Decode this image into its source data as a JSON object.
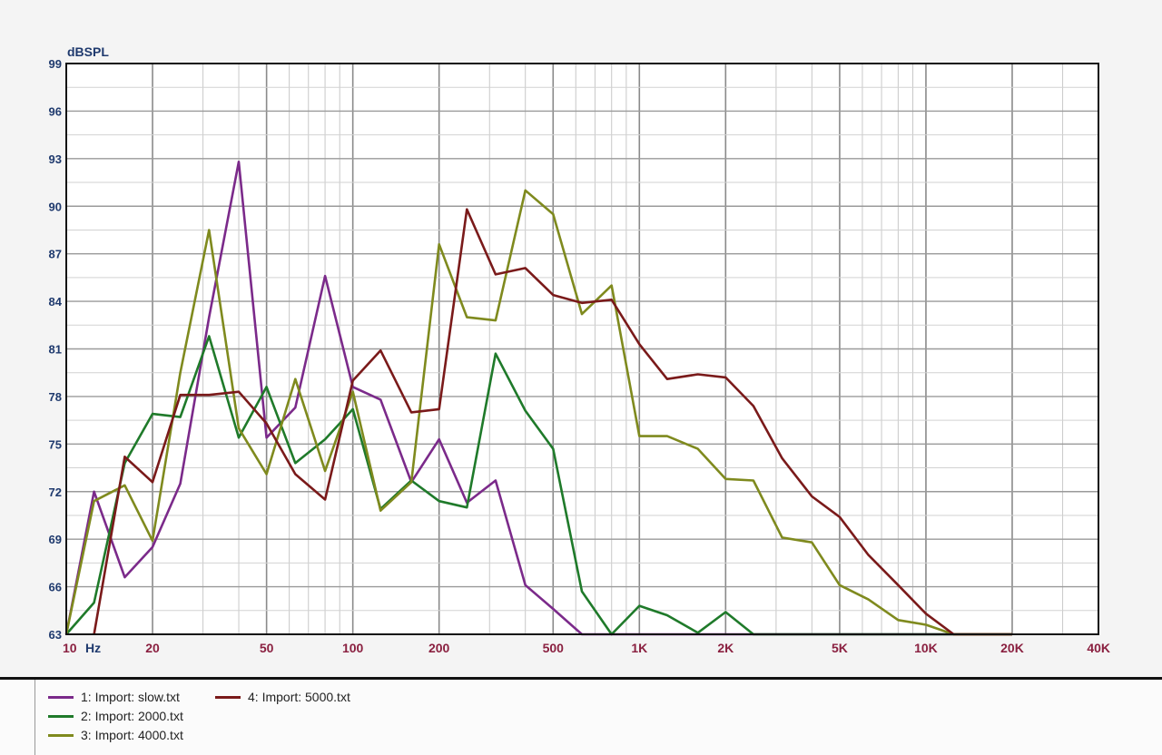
{
  "chart_data": {
    "type": "line",
    "ylabel": "dBSPL",
    "xlabel": "",
    "x_unit_label": "Hz",
    "x_scale": "log",
    "xlim": [
      10,
      40000
    ],
    "ylim": [
      63,
      99
    ],
    "grid": true,
    "y_ticks": [
      63,
      66,
      69,
      72,
      75,
      78,
      81,
      84,
      87,
      90,
      93,
      96,
      99
    ],
    "x_ticks": [
      {
        "value": 10,
        "label": "10"
      },
      {
        "value": 20,
        "label": "20"
      },
      {
        "value": 50,
        "label": "50"
      },
      {
        "value": 100,
        "label": "100"
      },
      {
        "value": 200,
        "label": "200"
      },
      {
        "value": 500,
        "label": "500"
      },
      {
        "value": 1000,
        "label": "1K"
      },
      {
        "value": 2000,
        "label": "2K"
      },
      {
        "value": 5000,
        "label": "5K"
      },
      {
        "value": 10000,
        "label": "10K"
      },
      {
        "value": 20000,
        "label": "20K"
      },
      {
        "value": 40000,
        "label": "40K"
      }
    ],
    "legend_position": "bottom",
    "series": [
      {
        "name": "1: Import: slow.txt",
        "color": "#7b2a8a",
        "points": [
          [
            10,
            63.0
          ],
          [
            12.5,
            72.0
          ],
          [
            16,
            66.6
          ],
          [
            20,
            68.5
          ],
          [
            25,
            72.5
          ],
          [
            31.5,
            83.0
          ],
          [
            40,
            92.8
          ],
          [
            50,
            75.4
          ],
          [
            63,
            77.3
          ],
          [
            80,
            85.6
          ],
          [
            100,
            78.6
          ],
          [
            125,
            77.8
          ],
          [
            160,
            72.6
          ],
          [
            200,
            75.3
          ],
          [
            250,
            71.3
          ],
          [
            315,
            72.7
          ],
          [
            400,
            66.1
          ],
          [
            500,
            64.6
          ],
          [
            630,
            63.0
          ],
          [
            800,
            63.0
          ],
          [
            1000,
            63.0
          ],
          [
            1250,
            63.0
          ],
          [
            1600,
            63.0
          ],
          [
            2000,
            63.0
          ],
          [
            2500,
            63.0
          ],
          [
            3150,
            63.0
          ],
          [
            4000,
            63.0
          ],
          [
            5000,
            63.0
          ],
          [
            6300,
            63.0
          ],
          [
            8000,
            63.0
          ],
          [
            10000,
            63.0
          ],
          [
            12500,
            63.0
          ],
          [
            16000,
            63.0
          ],
          [
            20000,
            63.0
          ]
        ]
      },
      {
        "name": "2: Import: 2000.txt",
        "color": "#1f7a2a",
        "points": [
          [
            10,
            63.0
          ],
          [
            12.5,
            65.0
          ],
          [
            16,
            73.8
          ],
          [
            20,
            76.9
          ],
          [
            25,
            76.7
          ],
          [
            31.5,
            81.8
          ],
          [
            40,
            75.4
          ],
          [
            50,
            78.6
          ],
          [
            63,
            73.8
          ],
          [
            80,
            75.3
          ],
          [
            100,
            77.2
          ],
          [
            125,
            70.9
          ],
          [
            160,
            72.7
          ],
          [
            200,
            71.4
          ],
          [
            250,
            71.0
          ],
          [
            315,
            80.7
          ],
          [
            400,
            77.1
          ],
          [
            500,
            74.7
          ],
          [
            630,
            65.7
          ],
          [
            800,
            63.0
          ],
          [
            1000,
            64.8
          ],
          [
            1250,
            64.2
          ],
          [
            1600,
            63.1
          ],
          [
            2000,
            64.4
          ],
          [
            2500,
            63.0
          ],
          [
            3150,
            63.0
          ],
          [
            4000,
            63.0
          ],
          [
            5000,
            63.0
          ],
          [
            6300,
            63.0
          ],
          [
            8000,
            63.0
          ],
          [
            10000,
            63.0
          ],
          [
            12500,
            63.0
          ],
          [
            16000,
            63.0
          ],
          [
            20000,
            63.0
          ]
        ]
      },
      {
        "name": "3: Import: 4000.txt",
        "color": "#7f8a1e",
        "points": [
          [
            10,
            63.0
          ],
          [
            12.5,
            71.4
          ],
          [
            16,
            72.4
          ],
          [
            20,
            68.9
          ],
          [
            25,
            79.5
          ],
          [
            31.5,
            88.5
          ],
          [
            40,
            76.0
          ],
          [
            50,
            73.1
          ],
          [
            63,
            79.1
          ],
          [
            80,
            73.3
          ],
          [
            100,
            78.3
          ],
          [
            125,
            70.8
          ],
          [
            160,
            72.6
          ],
          [
            200,
            87.6
          ],
          [
            250,
            83.0
          ],
          [
            315,
            82.8
          ],
          [
            400,
            91.0
          ],
          [
            500,
            89.5
          ],
          [
            630,
            83.2
          ],
          [
            800,
            85.0
          ],
          [
            1000,
            75.5
          ],
          [
            1250,
            75.5
          ],
          [
            1600,
            74.7
          ],
          [
            2000,
            72.8
          ],
          [
            2500,
            72.7
          ],
          [
            3150,
            69.1
          ],
          [
            4000,
            68.8
          ],
          [
            5000,
            66.1
          ],
          [
            6300,
            65.2
          ],
          [
            8000,
            63.9
          ],
          [
            10000,
            63.6
          ],
          [
            12500,
            63.0
          ],
          [
            16000,
            63.0
          ],
          [
            20000,
            63.0
          ]
        ]
      },
      {
        "name": "4: Import: 5000.txt",
        "color": "#7a1a1a",
        "points": [
          [
            12.5,
            63.0
          ],
          [
            16,
            74.2
          ],
          [
            20,
            72.6
          ],
          [
            25,
            78.1
          ],
          [
            31.5,
            78.1
          ],
          [
            40,
            78.3
          ],
          [
            50,
            76.3
          ],
          [
            63,
            73.1
          ],
          [
            80,
            71.5
          ],
          [
            100,
            79.0
          ],
          [
            125,
            80.9
          ],
          [
            160,
            77.0
          ],
          [
            200,
            77.2
          ],
          [
            250,
            89.8
          ],
          [
            315,
            85.7
          ],
          [
            400,
            86.1
          ],
          [
            500,
            84.4
          ],
          [
            630,
            83.9
          ],
          [
            800,
            84.1
          ],
          [
            1000,
            81.3
          ],
          [
            1250,
            79.1
          ],
          [
            1600,
            79.4
          ],
          [
            2000,
            79.2
          ],
          [
            2500,
            77.4
          ],
          [
            3150,
            74.1
          ],
          [
            4000,
            71.7
          ],
          [
            5000,
            70.4
          ],
          [
            6300,
            68.0
          ],
          [
            8000,
            66.1
          ],
          [
            10000,
            64.3
          ],
          [
            12500,
            63.0
          ],
          [
            16000,
            63.0
          ],
          [
            20000,
            63.0
          ]
        ]
      }
    ]
  }
}
